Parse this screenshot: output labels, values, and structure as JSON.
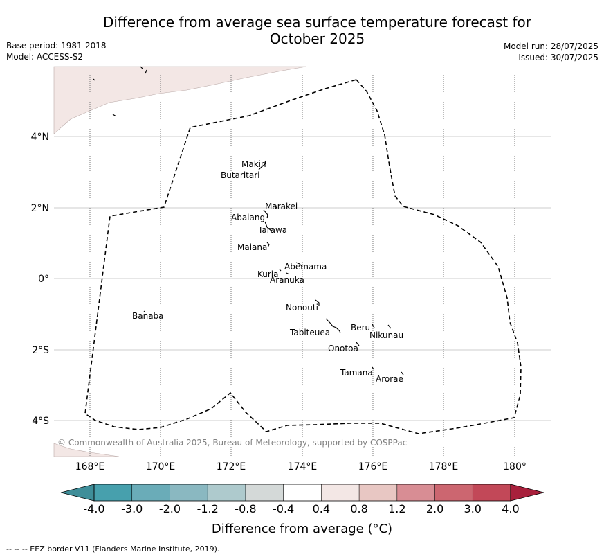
{
  "title": {
    "line1": "Difference from average sea surface temperature forecast for",
    "line2": "October 2025"
  },
  "meta_left": {
    "base_period": "Base period: 1981-2018",
    "model": "Model: ACCESS-S2"
  },
  "meta_right": {
    "model_run": "Model run: 28/07/2025",
    "issued": "Issued: 30/07/2025"
  },
  "axes": {
    "x_ticks": [
      "168°E",
      "170°E",
      "172°E",
      "174°E",
      "176°E",
      "178°E",
      "180°"
    ],
    "y_ticks": [
      "4°N",
      "2°N",
      "0°",
      "2°S",
      "4°S"
    ]
  },
  "places": [
    {
      "name": "Makin"
    },
    {
      "name": "Butaritari"
    },
    {
      "name": "Marakei"
    },
    {
      "name": "Abaiang"
    },
    {
      "name": "Tarawa"
    },
    {
      "name": "Maiana"
    },
    {
      "name": "Abemama"
    },
    {
      "name": "Kuria"
    },
    {
      "name": "Aranuka"
    },
    {
      "name": "Nonouti"
    },
    {
      "name": "Banaba"
    },
    {
      "name": "Beru"
    },
    {
      "name": "Nikunau"
    },
    {
      "name": "Tabiteuea"
    },
    {
      "name": "Onotoa"
    },
    {
      "name": "Tamana"
    },
    {
      "name": "Arorae"
    }
  ],
  "copyright": "© Commonwealth of Australia 2025, Bureau of Meteorology, supported by COSPPac",
  "colorbar": {
    "labels": [
      "-4.0",
      "-3.0",
      "-2.0",
      "-1.2",
      "-0.8",
      "-0.4",
      "0.4",
      "0.8",
      "1.2",
      "2.0",
      "3.0",
      "4.0"
    ],
    "colors": [
      "#3f8e99",
      "#47a0ad",
      "#6aacb8",
      "#8ab8c1",
      "#aecacd",
      "#d4d9d8",
      "#ffffff",
      "#f3e7e5",
      "#e8c7c3",
      "#d88d94",
      "#cc6670",
      "#c24858",
      "#a8203c"
    ],
    "title": "Difference from average (°C)",
    "title_main": "Difference from average (",
    "title_unit": "°C",
    "title_close": ")"
  },
  "eez_note": "--  --  -- EEZ border V11 (Flanders Marine Institute, 2019).",
  "colors": {
    "land": "#f3e7e5",
    "grid": "#cccccc",
    "eez": "#000000"
  }
}
